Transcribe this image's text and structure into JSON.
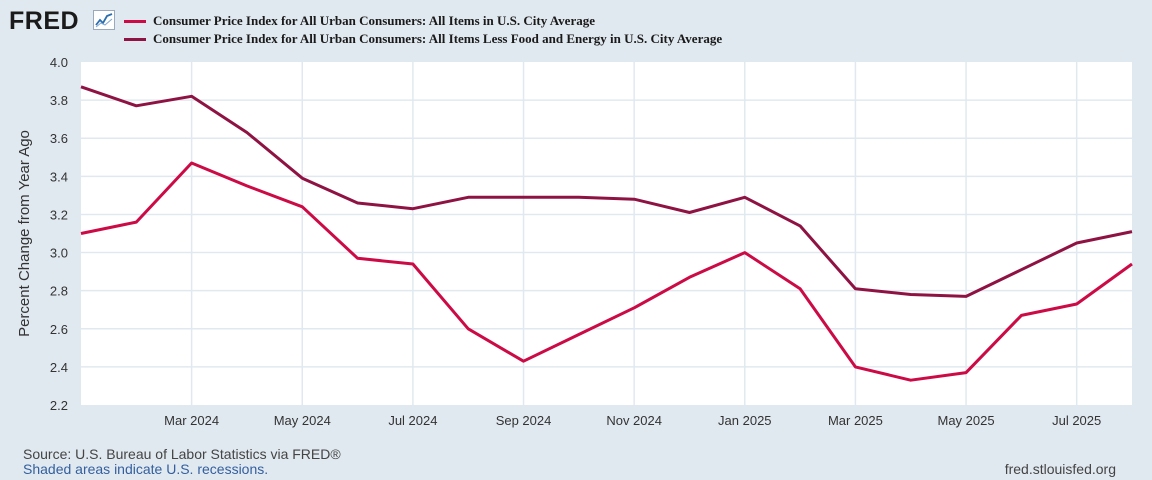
{
  "brand": {
    "logo_text": "FRED"
  },
  "colors": {
    "cpi": "#cc0a45",
    "core": "#8e1343",
    "grid": "#e1e9f0",
    "axis_text": "#333333"
  },
  "chart_data": {
    "type": "line",
    "title": "",
    "xlabel": "",
    "ylabel": "Percent Change from Year Ago",
    "ylim": [
      2.2,
      4.0
    ],
    "yticks": [
      "4.0",
      "3.8",
      "3.6",
      "3.4",
      "3.2",
      "3.0",
      "2.8",
      "2.6",
      "2.4",
      "2.2"
    ],
    "x": [
      "Jan 2024",
      "Feb 2024",
      "Mar 2024",
      "Apr 2024",
      "May 2024",
      "Jun 2024",
      "Jul 2024",
      "Aug 2024",
      "Sep 2024",
      "Oct 2024",
      "Nov 2024",
      "Dec 2024",
      "Jan 2025",
      "Feb 2025",
      "Mar 2025",
      "Apr 2025",
      "May 2025",
      "Jun 2025",
      "Jul 2025",
      "Aug 2025"
    ],
    "xticks": [
      {
        "index": 2,
        "label": "Mar 2024"
      },
      {
        "index": 4,
        "label": "May 2024"
      },
      {
        "index": 6,
        "label": "Jul 2024"
      },
      {
        "index": 8,
        "label": "Sep 2024"
      },
      {
        "index": 10,
        "label": "Nov 2024"
      },
      {
        "index": 12,
        "label": "Jan 2025"
      },
      {
        "index": 14,
        "label": "Mar 2025"
      },
      {
        "index": 16,
        "label": "May 2025"
      },
      {
        "index": 18,
        "label": "Jul 2025"
      }
    ],
    "series": [
      {
        "name": "Consumer Price Index for All Urban Consumers: All Items in U.S. City Average",
        "color": "#cc0a45",
        "values": [
          3.1,
          3.16,
          3.47,
          3.35,
          3.24,
          2.97,
          2.94,
          2.6,
          2.43,
          2.57,
          2.71,
          2.87,
          3.0,
          2.81,
          2.4,
          2.33,
          2.37,
          2.67,
          2.73,
          2.94
        ]
      },
      {
        "name": "Consumer Price Index for All Urban Consumers: All Items Less Food and Energy in U.S. City Average",
        "color": "#8e1343",
        "values": [
          3.87,
          3.77,
          3.82,
          3.63,
          3.39,
          3.26,
          3.23,
          3.29,
          3.29,
          3.29,
          3.28,
          3.21,
          3.29,
          3.14,
          2.81,
          2.78,
          2.77,
          2.91,
          3.05,
          3.11
        ]
      }
    ]
  },
  "footer": {
    "source": "Source: U.S. Bureau of Labor Statistics via FRED®",
    "recession_note": "Shaded areas indicate U.S. recessions.",
    "site": "fred.stlouisfed.org"
  }
}
